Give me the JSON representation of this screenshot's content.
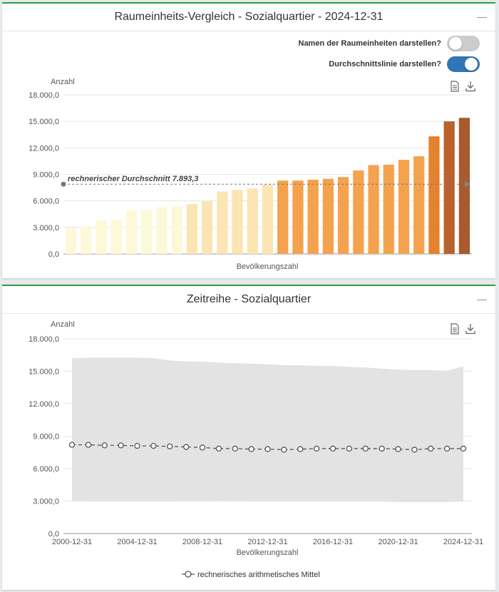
{
  "panel1": {
    "title": "Raumeinheits-Vergleich - Sozialquartier - 2024-12-31",
    "collapse_icon": "minus-icon",
    "toggle_names": {
      "label": "Namen der Raumeinheiten darstellen?",
      "state": "off"
    },
    "toggle_avg": {
      "label": "Durchschnittslinie darstellen?",
      "state": "on"
    }
  },
  "panel2": {
    "title": "Zeitreihe - Sozialquartier",
    "collapse_icon": "minus-icon"
  },
  "icons": {
    "export": "document-icon",
    "download": "download-icon"
  },
  "chart_data": [
    {
      "type": "bar",
      "ylabel": "Anzahl",
      "xlabel": "Bevölkerungszahl",
      "ylim": [
        0,
        18000
      ],
      "yticks": [
        "0,0",
        "3.000,0",
        "6.000,0",
        "9.000,0",
        "12.000,0",
        "15.000,0",
        "18.000,0"
      ],
      "grid": true,
      "values": [
        2950,
        3100,
        3750,
        3800,
        4950,
        5000,
        5300,
        5350,
        5650,
        6000,
        7050,
        7250,
        7400,
        7850,
        8300,
        8300,
        8400,
        8500,
        8700,
        9450,
        10050,
        10100,
        10650,
        11050,
        13300,
        15000,
        15400
      ],
      "colors": [
        "#fdf9d8",
        "#fdf9d8",
        "#fdf9d8",
        "#fdf9d8",
        "#fdf9d8",
        "#fdf9d8",
        "#fdf9d8",
        "#fdf9d8",
        "#fbe5b2",
        "#fbe5b2",
        "#fbe5b2",
        "#fbe5b2",
        "#fbe5b2",
        "#fbe5b2",
        "#f5a24e",
        "#f5a24e",
        "#f5a24e",
        "#f5a24e",
        "#f5a24e",
        "#f5a24e",
        "#f5a24e",
        "#f5a24e",
        "#f5a24e",
        "#f5a24e",
        "#e5822e",
        "#b9622f",
        "#a85a30"
      ],
      "average": {
        "value": 7893.3,
        "label": "rechnerischer Durchschnitt  7.893,3"
      }
    },
    {
      "type": "line",
      "ylabel": "Anzahl",
      "xlabel": "Bevölkerungszahl",
      "ylim": [
        0,
        18000
      ],
      "yticks": [
        "0,0",
        "3.000,0",
        "6.000,0",
        "9.000,0",
        "12.000,0",
        "15.000,0",
        "18.000,0"
      ],
      "grid": true,
      "x": [
        "2000-12-31",
        "2001-12-31",
        "2002-12-31",
        "2003-12-31",
        "2004-12-31",
        "2005-12-31",
        "2006-12-31",
        "2007-12-31",
        "2008-12-31",
        "2009-12-31",
        "2010-12-31",
        "2011-12-31",
        "2012-12-31",
        "2013-12-31",
        "2014-12-31",
        "2015-12-31",
        "2016-12-31",
        "2017-12-31",
        "2018-12-31",
        "2019-12-31",
        "2020-12-31",
        "2021-12-31",
        "2022-12-31",
        "2023-12-31",
        "2024-12-31"
      ],
      "xticks": [
        "2000-12-31",
        "2004-12-31",
        "2008-12-31",
        "2012-12-31",
        "2016-12-31",
        "2020-12-31",
        "2024-12-31"
      ],
      "series": [
        {
          "name": "rechnerisches arithmetisches Mittel",
          "values": [
            8200,
            8200,
            8150,
            8150,
            8100,
            8100,
            8050,
            8000,
            7950,
            7850,
            7850,
            7800,
            7800,
            7750,
            7800,
            7850,
            7850,
            7850,
            7850,
            7850,
            7800,
            7750,
            7850,
            7850,
            7850
          ]
        }
      ],
      "range_max": [
        16200,
        16250,
        16250,
        16250,
        16250,
        16200,
        16000,
        15900,
        15900,
        15800,
        15750,
        15700,
        15650,
        15550,
        15550,
        15500,
        15500,
        15400,
        15350,
        15250,
        15150,
        15100,
        15100,
        15050,
        15450
      ],
      "range_min": [
        3000,
        2950,
        2950,
        2950,
        2950,
        2950,
        2950,
        3000,
        3000,
        3050,
        3000,
        2950,
        2950,
        2950,
        2950,
        2950,
        2950,
        2950,
        2950,
        2950,
        2900,
        2900,
        2900,
        2900,
        2950
      ]
    }
  ]
}
